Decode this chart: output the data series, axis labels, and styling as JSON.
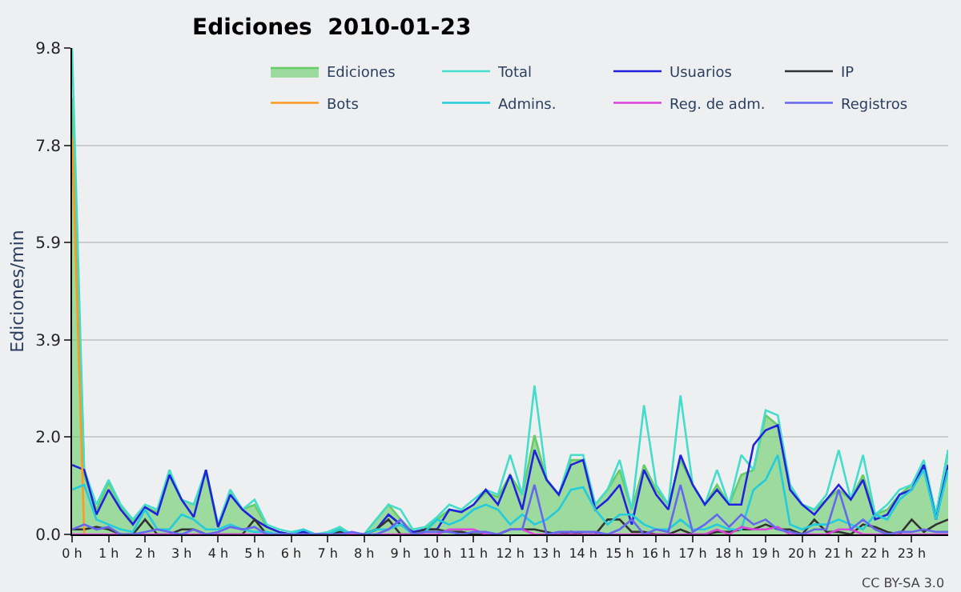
{
  "chart_data": {
    "type": "line",
    "title": "Ediciones  2010-01-23",
    "ylabel": "Ediciones/min",
    "x": [
      0,
      0.333,
      0.667,
      1,
      1.333,
      1.667,
      2,
      2.333,
      2.667,
      3,
      3.333,
      3.667,
      4,
      4.333,
      4.667,
      5,
      5.333,
      5.667,
      6,
      6.333,
      6.667,
      7,
      7.333,
      7.667,
      8,
      8.333,
      8.667,
      9,
      9.333,
      9.667,
      10,
      10.333,
      10.667,
      11,
      11.333,
      11.667,
      12,
      12.333,
      12.667,
      13,
      13.333,
      13.667,
      14,
      14.333,
      14.667,
      15,
      15.333,
      15.667,
      16,
      16.333,
      16.667,
      17,
      17.333,
      17.667,
      18,
      18.333,
      18.667,
      19,
      19.333,
      19.667,
      20,
      20.333,
      20.667,
      21,
      21.333,
      21.667,
      22,
      22.333,
      22.667,
      23,
      23.333,
      23.667,
      24
    ],
    "series": [
      {
        "name": "Ediciones",
        "type": "area",
        "color": "#66cc66",
        "values": [
          8.8,
          1.2,
          0.5,
          1.05,
          0.55,
          0.25,
          0.55,
          0.45,
          1.25,
          0.7,
          0.6,
          1.25,
          0.15,
          0.9,
          0.5,
          0.6,
          0.15,
          0.05,
          0,
          0.05,
          0,
          0,
          0.15,
          0,
          0,
          0.3,
          0.6,
          0.3,
          0.05,
          0.1,
          0.3,
          0.5,
          0.45,
          0.6,
          0.85,
          0.75,
          1.2,
          0.8,
          2.0,
          1.1,
          0.8,
          1.5,
          1.5,
          0.6,
          0.9,
          1.3,
          0.5,
          1.4,
          0.9,
          0.6,
          1.5,
          1.0,
          0.6,
          1.0,
          0.6,
          1.2,
          1.3,
          2.4,
          2.2,
          1.0,
          0.6,
          0.5,
          0.7,
          0.9,
          0.7,
          1.2,
          0.4,
          0.5,
          0.8,
          1.0,
          1.4,
          0.4,
          1.7
        ]
      },
      {
        "name": "Total",
        "color": "#44ddcc",
        "values": [
          9.8,
          1.3,
          0.6,
          1.1,
          0.6,
          0.3,
          0.6,
          0.5,
          1.3,
          0.7,
          0.6,
          1.3,
          0.2,
          0.9,
          0.5,
          0.7,
          0.2,
          0.1,
          0.05,
          0.1,
          0,
          0.05,
          0.15,
          0,
          0,
          0.3,
          0.6,
          0.5,
          0.1,
          0.15,
          0.35,
          0.6,
          0.5,
          0.7,
          0.9,
          0.8,
          1.6,
          0.8,
          3.0,
          1.1,
          0.8,
          1.6,
          1.6,
          0.6,
          0.9,
          1.5,
          0.5,
          2.6,
          1.0,
          0.6,
          2.8,
          1.0,
          0.6,
          1.3,
          0.6,
          1.6,
          1.3,
          2.5,
          2.4,
          1.0,
          0.6,
          0.5,
          0.8,
          1.7,
          0.7,
          1.6,
          0.4,
          0.6,
          0.9,
          1.0,
          1.5,
          0.4,
          1.7
        ]
      },
      {
        "name": "Usuarios",
        "color": "#2222dd",
        "values": [
          1.4,
          1.3,
          0.4,
          0.9,
          0.5,
          0.2,
          0.55,
          0.4,
          1.2,
          0.7,
          0.35,
          1.3,
          0.15,
          0.8,
          0.5,
          0.3,
          0.15,
          0.05,
          0,
          0.05,
          0,
          0,
          0,
          0,
          0,
          0.1,
          0.4,
          0.2,
          0.05,
          0.1,
          0.1,
          0.5,
          0.45,
          0.6,
          0.9,
          0.6,
          1.2,
          0.5,
          1.7,
          1.1,
          0.8,
          1.4,
          1.5,
          0.5,
          0.7,
          1.0,
          0.2,
          1.3,
          0.8,
          0.5,
          1.6,
          1.0,
          0.6,
          0.9,
          0.6,
          0.6,
          1.8,
          2.1,
          2.2,
          0.9,
          0.6,
          0.4,
          0.7,
          1.0,
          0.7,
          1.1,
          0.3,
          0.4,
          0.8,
          0.9,
          1.4,
          0.3,
          1.4
        ]
      },
      {
        "name": "IP",
        "color": "#333333",
        "values": [
          0.1,
          0.1,
          0.15,
          0.1,
          0,
          0,
          0.3,
          0,
          0,
          0.1,
          0.1,
          0,
          0,
          0,
          0,
          0.3,
          0,
          0,
          0,
          0,
          0,
          0,
          0.05,
          0,
          0,
          0.1,
          0.3,
          0,
          0,
          0.1,
          0.1,
          0.05,
          0.05,
          0,
          0,
          0,
          0.1,
          0.1,
          0.1,
          0.05,
          0,
          0.05,
          0,
          0,
          0.3,
          0.3,
          0.05,
          0.05,
          0,
          0,
          0.1,
          0,
          0,
          0.05,
          0.05,
          0.1,
          0.1,
          0.2,
          0.1,
          0.1,
          0,
          0.3,
          0.05,
          0.05,
          0,
          0.2,
          0.15,
          0.05,
          0,
          0.3,
          0.05,
          0.2,
          0.3
        ]
      },
      {
        "name": "Bots",
        "color": "#ff9922",
        "values": [
          8.0,
          0,
          null,
          null,
          null,
          null,
          null,
          null,
          null,
          null,
          null,
          null,
          null,
          null,
          null,
          null,
          null,
          null,
          null,
          null,
          null,
          null,
          null,
          null,
          null,
          null,
          null,
          null,
          null,
          null,
          null,
          null,
          null,
          null,
          null,
          null,
          null,
          null,
          null,
          null,
          null,
          null,
          null,
          null,
          null,
          null,
          null,
          null,
          null,
          null,
          null,
          null,
          null,
          null,
          null,
          null,
          null,
          null,
          null,
          null,
          null,
          null,
          null,
          null,
          null,
          null,
          null,
          null,
          null,
          null,
          null,
          null,
          null
        ]
      },
      {
        "name": "Admins.",
        "color": "#22ccdd",
        "values": [
          0.9,
          1.0,
          0.3,
          0.2,
          0.1,
          0.05,
          0.5,
          0.1,
          0.1,
          0.4,
          0.3,
          0.1,
          0.1,
          0.2,
          0.1,
          0.05,
          0.05,
          0,
          0,
          0.1,
          0,
          0,
          0.1,
          0,
          0,
          0.1,
          0.1,
          0.2,
          0,
          0.05,
          0.3,
          0.2,
          0.3,
          0.5,
          0.6,
          0.5,
          0.2,
          0.4,
          0.2,
          0.3,
          0.5,
          0.9,
          0.95,
          0.5,
          0.2,
          0.4,
          0.4,
          0.2,
          0.1,
          0.1,
          0.3,
          0.1,
          0.1,
          0.2,
          0.1,
          0.1,
          0.9,
          1.1,
          1.6,
          0.2,
          0.1,
          0.2,
          0.2,
          0.3,
          0.2,
          0.1,
          0.4,
          0.3,
          0.7,
          0.9,
          1.3,
          0.3,
          1.3
        ]
      },
      {
        "name": "Reg. de adm.",
        "color": "#dd44dd",
        "values": [
          0,
          0,
          0,
          0,
          0,
          0,
          0,
          0,
          0,
          0,
          0,
          0,
          0,
          0,
          0,
          0,
          0,
          0,
          0,
          0,
          0,
          0,
          0,
          0,
          0,
          0,
          0,
          0,
          0,
          0,
          0,
          0.1,
          0.1,
          0.1,
          0,
          0,
          0.1,
          0.1,
          0,
          0,
          0,
          0,
          0,
          0,
          0,
          0,
          0,
          0,
          0,
          0,
          0,
          0,
          0,
          0.1,
          0,
          0.15,
          0.1,
          0.1,
          0.15,
          0,
          0,
          0,
          0,
          0.1,
          0.1,
          0,
          0,
          0,
          0,
          0,
          0,
          0,
          0
        ]
      },
      {
        "name": "Registros",
        "color": "#6666ee",
        "values": [
          0.1,
          0.2,
          0.1,
          0.15,
          0,
          0,
          0.05,
          0.1,
          0.05,
          0,
          0.1,
          0,
          0.05,
          0.15,
          0.1,
          0.15,
          0,
          0,
          0,
          0,
          0,
          0,
          0,
          0.05,
          0,
          0,
          0.1,
          0.3,
          0,
          0.05,
          0.05,
          0.05,
          0,
          0.05,
          0.05,
          0,
          0.1,
          0.1,
          1.0,
          0,
          0.05,
          0.05,
          0.05,
          0.05,
          0,
          0.1,
          0.3,
          0,
          0.1,
          0.05,
          1.0,
          0.05,
          0.2,
          0.4,
          0.15,
          0.4,
          0.2,
          0.3,
          0.1,
          0.05,
          0,
          0.1,
          0.1,
          0.9,
          0.1,
          0.3,
          0.1,
          0,
          0.05,
          0.05,
          0.1,
          0.05,
          0.05
        ]
      }
    ],
    "xlim": [
      0,
      24
    ],
    "xticks": [
      {
        "value": 0,
        "label": "0 h"
      },
      {
        "value": 1,
        "label": "1 h"
      },
      {
        "value": 2,
        "label": "2 h"
      },
      {
        "value": 3,
        "label": "3 h"
      },
      {
        "value": 4,
        "label": "4 h"
      },
      {
        "value": 5,
        "label": "5 h"
      },
      {
        "value": 6,
        "label": "6 h"
      },
      {
        "value": 7,
        "label": "7 h"
      },
      {
        "value": 8,
        "label": "8 h"
      },
      {
        "value": 9,
        "label": "9 h"
      },
      {
        "value": 10,
        "label": "10 h"
      },
      {
        "value": 11,
        "label": "11 h"
      },
      {
        "value": 12,
        "label": "12 h"
      },
      {
        "value": 13,
        "label": "13 h"
      },
      {
        "value": 14,
        "label": "14 h"
      },
      {
        "value": 15,
        "label": "15 h"
      },
      {
        "value": 16,
        "label": "16 h"
      },
      {
        "value": 17,
        "label": "17 h"
      },
      {
        "value": 18,
        "label": "18 h"
      },
      {
        "value": 19,
        "label": "19 h"
      },
      {
        "value": 20,
        "label": "20 h"
      },
      {
        "value": 21,
        "label": "21 h"
      },
      {
        "value": 22,
        "label": "22 h"
      },
      {
        "value": 23,
        "label": "23 h"
      }
    ],
    "ylim": [
      0,
      9.8
    ],
    "yticks": [
      {
        "value": 0,
        "label": "0.0"
      },
      {
        "value": 1.96,
        "label": "2.0"
      },
      {
        "value": 3.92,
        "label": "3.9"
      },
      {
        "value": 5.88,
        "label": "5.9"
      },
      {
        "value": 7.84,
        "label": "7.8"
      },
      9.8
    ],
    "grid": "y",
    "legend": "top right",
    "marker": "none",
    "annotations": [
      "CC BY-SA 3.0"
    ]
  }
}
